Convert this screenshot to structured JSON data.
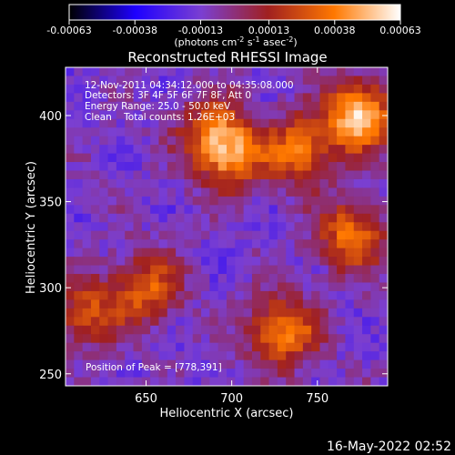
{
  "chart_data": {
    "type": "heatmap",
    "title": "Reconstructed RHESSI Image",
    "xlabel": "Heliocentric X (arcsec)",
    "ylabel": "Heliocentric Y (arcsec)",
    "xlim": [
      603,
      791
    ],
    "ylim": [
      243,
      428
    ],
    "x_ticks": [
      650,
      700,
      750
    ],
    "y_ticks": [
      250,
      300,
      350,
      400
    ],
    "colorbar": {
      "range": [
        -0.00063,
        0.00063
      ],
      "tick_values": [
        -0.00063,
        -0.00038,
        -0.00013,
        0.00013,
        0.00038,
        0.00063
      ],
      "tick_labels": [
        "-0.00063",
        "-0.00038",
        "-0.00013",
        "0.00013",
        "0.00038",
        "0.00063"
      ],
      "units_prefix": "(photons cm",
      "units_exp1": "-2",
      "units_mid1": " s",
      "units_exp2": "-1",
      "units_mid2": " asec",
      "units_exp3": "-2",
      "units_suffix": ")"
    },
    "colormap": [
      "#000000",
      "#1e00ff",
      "#7b3fd1",
      "#a02020",
      "#ff7800",
      "#ffffff"
    ],
    "bright_sources": [
      {
        "x": 775,
        "y": 400,
        "value": 0.00063
      },
      {
        "x": 740,
        "y": 380,
        "value": 0.00045
      },
      {
        "x": 700,
        "y": 375,
        "value": 0.0004
      },
      {
        "x": 770,
        "y": 330,
        "value": 0.00045
      },
      {
        "x": 730,
        "y": 275,
        "value": 0.0005
      },
      {
        "x": 650,
        "y": 300,
        "value": 0.0004
      },
      {
        "x": 615,
        "y": 285,
        "value": 0.00035
      },
      {
        "x": 690,
        "y": 390,
        "value": 0.0004
      }
    ],
    "annotations": {
      "line1": "12-Nov-2011 04:34:12.000 to 04:35:08.000",
      "line2": "Detectors: 3F 4F 5F 6F 7F 8F, Att 0",
      "line3": "Energy Range: 25.0 - 50.0 keV",
      "line4": "Clean    Total counts: 1.26E+03",
      "peak": "Position of Peak = [778,391]"
    }
  },
  "footer": {
    "timestamp": "16-May-2022 02:52"
  }
}
